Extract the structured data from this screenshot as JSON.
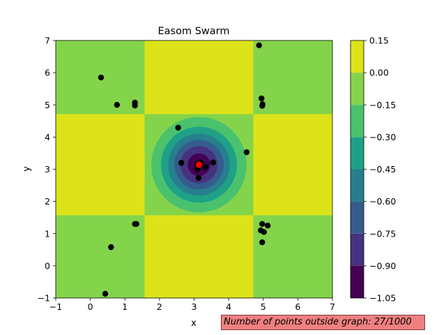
{
  "chart_data": {
    "type": "contour",
    "title": "Easom Swarm",
    "xlabel": "x",
    "ylabel": "y",
    "xlim": [
      -1,
      7
    ],
    "ylim": [
      -1,
      7
    ],
    "x_ticks": [
      -1,
      0,
      1,
      2,
      3,
      4,
      5,
      6,
      7
    ],
    "y_ticks": [
      -1,
      0,
      1,
      2,
      3,
      4,
      5,
      6,
      7
    ],
    "grid": false,
    "contour_function": "Easom",
    "colorbar": {
      "levels": [
        -1.05,
        -0.9,
        -0.75,
        -0.6,
        -0.45,
        -0.3,
        -0.15,
        0.0,
        0.15
      ],
      "tick_labels": [
        "−1.05",
        "−0.90",
        "−0.75",
        "−0.60",
        "−0.45",
        "−0.30",
        "−0.15",
        "0.00",
        "0.15"
      ],
      "colors": [
        "#440154",
        "#46327e",
        "#365c8d",
        "#277f8e",
        "#1fa187",
        "#4ac16d",
        "#84d44b",
        "#dce319"
      ]
    },
    "best_point": {
      "x": 3.14,
      "y": 3.14,
      "color": "#ff0000"
    },
    "points_color": "#000000",
    "points": [
      {
        "x": 4.88,
        "y": 6.85
      },
      {
        "x": 0.31,
        "y": 5.85
      },
      {
        "x": 0.77,
        "y": 5.0
      },
      {
        "x": 1.29,
        "y": 5.07
      },
      {
        "x": 1.29,
        "y": 4.98
      },
      {
        "x": 4.95,
        "y": 5.2
      },
      {
        "x": 4.98,
        "y": 5.02
      },
      {
        "x": 4.97,
        "y": 4.97
      },
      {
        "x": 2.54,
        "y": 4.29
      },
      {
        "x": 4.52,
        "y": 3.53
      },
      {
        "x": 2.63,
        "y": 3.2
      },
      {
        "x": 3.09,
        "y": 3.15
      },
      {
        "x": 3.18,
        "y": 3.22
      },
      {
        "x": 3.32,
        "y": 3.07
      },
      {
        "x": 3.55,
        "y": 3.21
      },
      {
        "x": 3.1,
        "y": 3.0
      },
      {
        "x": 3.13,
        "y": 2.73
      },
      {
        "x": 1.29,
        "y": 1.3
      },
      {
        "x": 1.33,
        "y": 1.3
      },
      {
        "x": 4.97,
        "y": 1.3
      },
      {
        "x": 5.13,
        "y": 1.25
      },
      {
        "x": 4.93,
        "y": 1.1
      },
      {
        "x": 5.02,
        "y": 1.05
      },
      {
        "x": 4.97,
        "y": 0.73
      },
      {
        "x": 0.6,
        "y": 0.58
      },
      {
        "x": 0.43,
        "y": -0.87
      }
    ],
    "annotation": "Number of points outside graph: 27/1000"
  }
}
